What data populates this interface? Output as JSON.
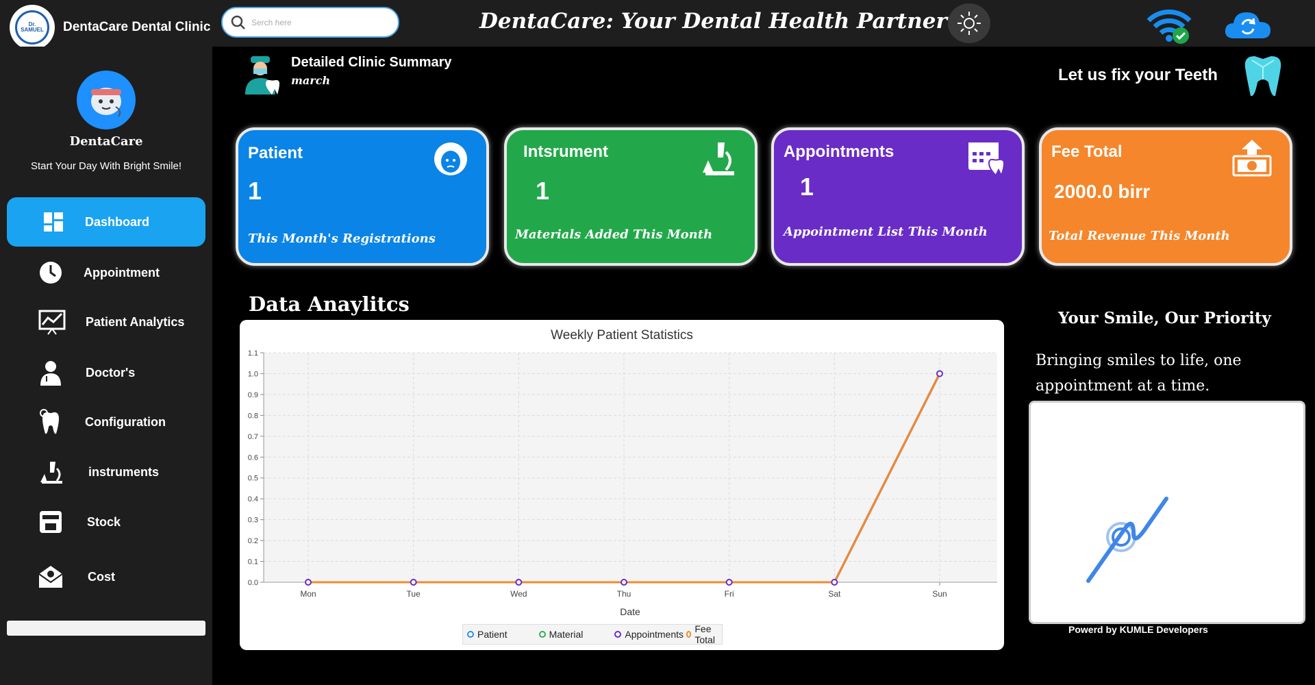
{
  "brand": {
    "name": "DentaCare Dental Clinic",
    "logo_text": "Dr. SAMUEL"
  },
  "search": {
    "placeholder": "Serch here"
  },
  "header": {
    "title": "DentaCare: Your Dental Health Partner"
  },
  "icons": {
    "theme": "sun-icon",
    "wifi": "wifi-connected-icon",
    "cloud": "cloud-sync-icon"
  },
  "profile": {
    "name": "DentaCare",
    "tagline": "Start Your Day With Bright Smile!"
  },
  "sidebar": {
    "items": [
      {
        "label": "Dashboard",
        "icon": "dashboard-icon",
        "active": true
      },
      {
        "label": "Appointment",
        "icon": "clock-icon"
      },
      {
        "label": "Patient Analytics",
        "icon": "analytics-icon"
      },
      {
        "label": "Doctor's",
        "icon": "doctor-icon"
      },
      {
        "label": "Configuration",
        "icon": "tooth-gear-icon"
      },
      {
        "label": "instruments",
        "icon": "microscope-icon"
      },
      {
        "label": "Stock",
        "icon": "store-icon"
      },
      {
        "label": "Cost",
        "icon": "envelope-money-icon"
      }
    ]
  },
  "summary": {
    "title": "Detailed Clinic  Summary",
    "month": "march",
    "tagline": "Let us fix your Teeth"
  },
  "cards": [
    {
      "title": "Patient",
      "value": "1",
      "subtitle": "This Month's Registrations",
      "color": "#0a84e6",
      "icon": "patient-face-icon"
    },
    {
      "title": "Intsrument",
      "value": "1",
      "subtitle": "Materials Added This Month",
      "color": "#22a84a",
      "icon": "microscope-icon"
    },
    {
      "title": "Appointments",
      "value": "1",
      "subtitle": "Appointment List This Month",
      "color": "#6a2cc6",
      "icon": "calendar-tooth-icon"
    },
    {
      "title": "Fee Total",
      "value": "2000.0 birr",
      "subtitle": "Total Revenue This Month",
      "color": "#f5862b",
      "icon": "money-upload-icon"
    }
  ],
  "analytics": {
    "title": "Data Anaylitcs"
  },
  "chart_data": {
    "type": "line",
    "title": "Weekly Patient Statistics",
    "xlabel": "Date",
    "ylabel": "",
    "categories": [
      "Mon",
      "Tue",
      "Wed",
      "Thu",
      "Fri",
      "Sat",
      "Sun"
    ],
    "ylim": [
      0,
      1.1
    ],
    "yticks": [
      "0.0",
      "0.1",
      "0.2",
      "0.3",
      "0.4",
      "0.5",
      "0.6",
      "0.7",
      "0.8",
      "0.9",
      "1.0",
      "1.1"
    ],
    "grid": true,
    "legend_position": "bottom",
    "series": [
      {
        "name": "Patient",
        "values": [
          0,
          0,
          0,
          0,
          0,
          0,
          1
        ],
        "color": "#2a8ee6"
      },
      {
        "name": "Material",
        "values": [
          0,
          0,
          0,
          0,
          0,
          0,
          1
        ],
        "color": "#2fb04a"
      },
      {
        "name": "Appointments",
        "values": [
          0,
          0,
          0,
          0,
          0,
          0,
          1
        ],
        "color": "#6a2cc6"
      },
      {
        "name": "Fee Total",
        "values": [
          0,
          0,
          0,
          0,
          0,
          0,
          1
        ],
        "color": "#f08a30"
      }
    ]
  },
  "right_panel": {
    "title": "Your Smile, Our Priority",
    "text": "Bringing smiles to life, one appointment at a time.",
    "powered": "Powerd by KUMLE Developers"
  }
}
